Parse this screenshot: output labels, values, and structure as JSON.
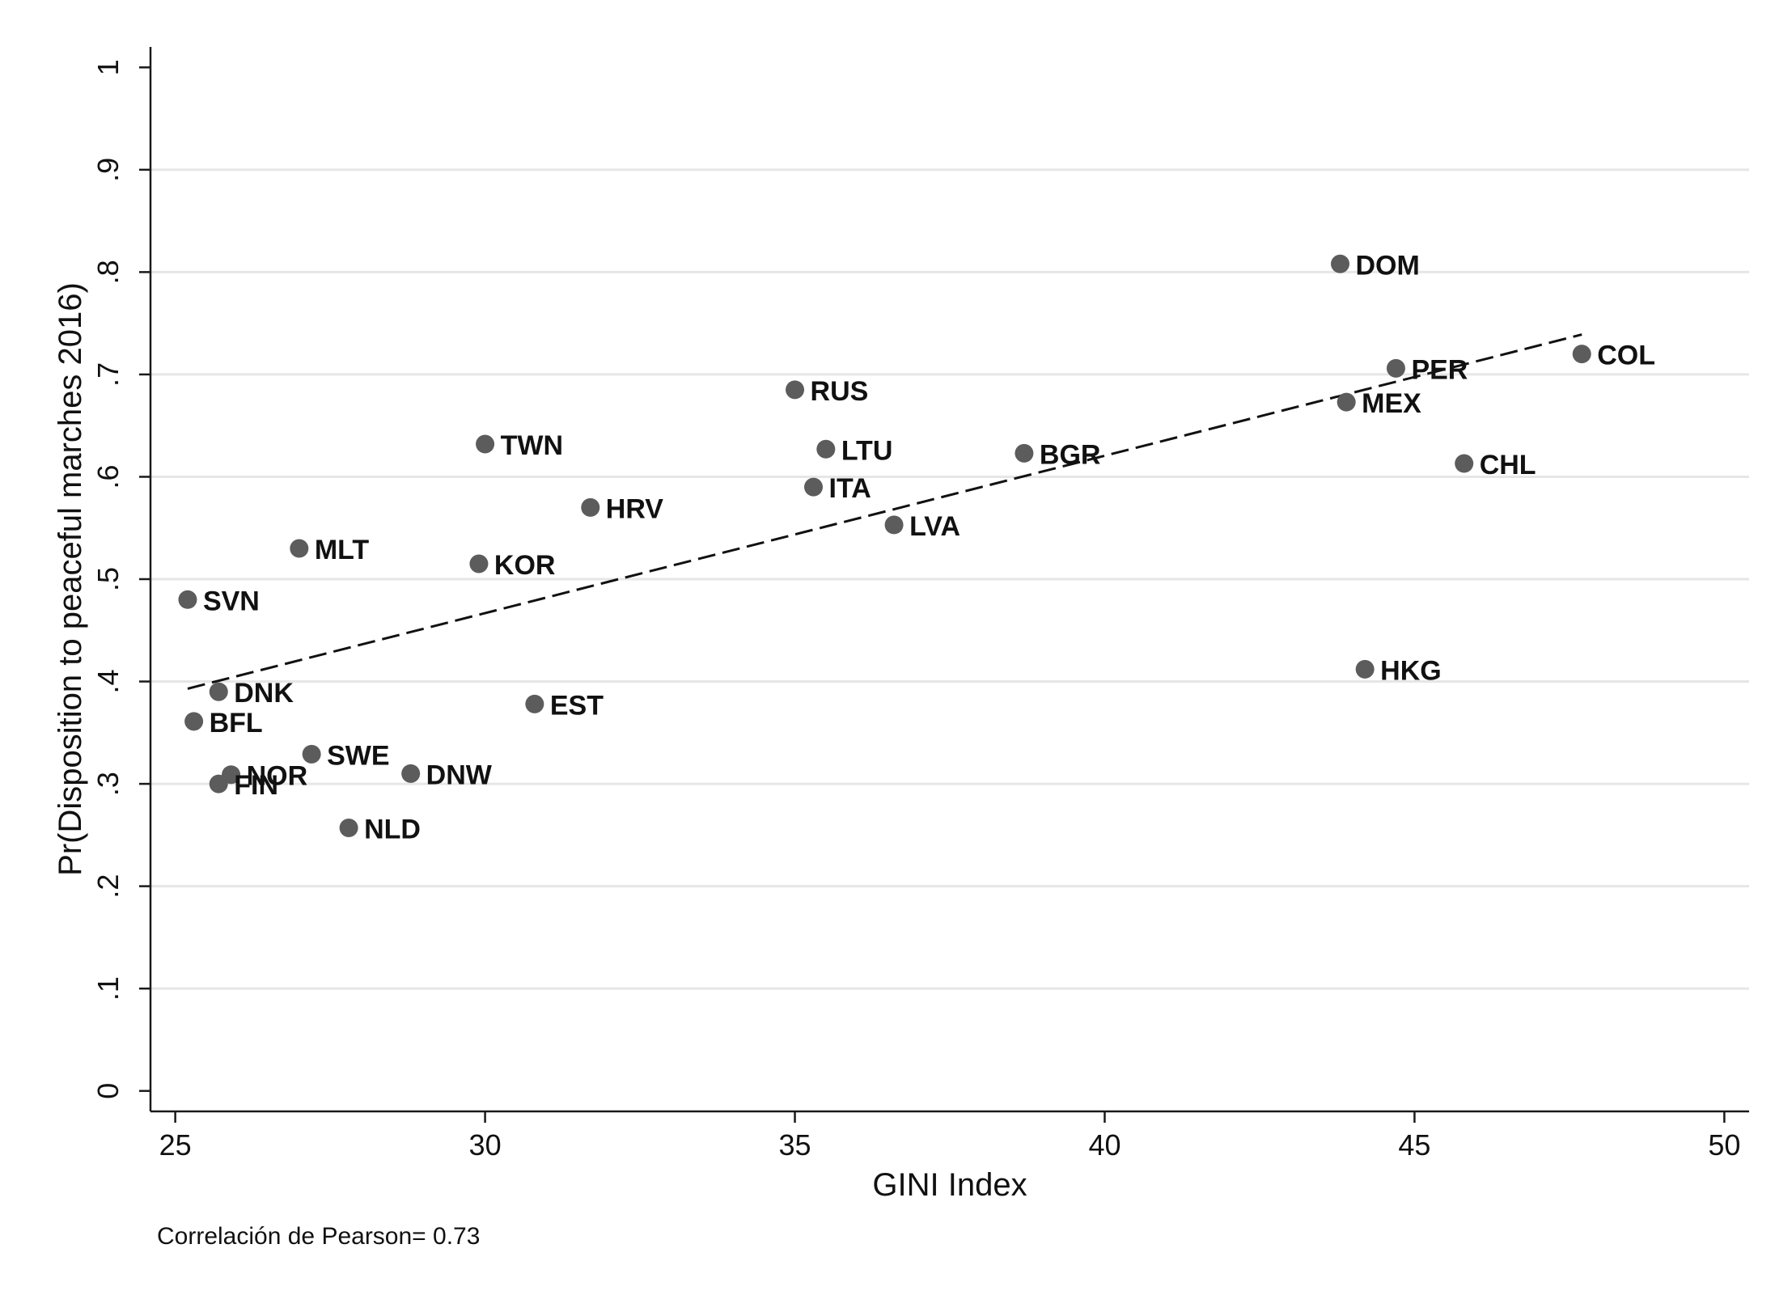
{
  "chart_data": {
    "type": "scatter",
    "xlabel": "GINI Index",
    "ylabel": "Pr(Disposition to peaceful marches 2016)",
    "xlim": [
      24.6,
      50.4
    ],
    "ylim": [
      -0.02,
      1.02
    ],
    "xticks": [
      25,
      30,
      35,
      40,
      45,
      50
    ],
    "xtick_labels": [
      "25",
      "30",
      "35",
      "40",
      "45",
      "50"
    ],
    "yticks": [
      0,
      0.1,
      0.2,
      0.3,
      0.4,
      0.5,
      0.6,
      0.7,
      0.8,
      0.9,
      1
    ],
    "ytick_labels": [
      "0",
      ".1",
      ".2",
      ".3",
      ".4",
      ".5",
      ".6",
      ".7",
      ".8",
      ".9",
      "1"
    ],
    "grid": "horizontal",
    "points": [
      {
        "label": "DOM",
        "x": 43.8,
        "y": 0.808
      },
      {
        "label": "COL",
        "x": 47.7,
        "y": 0.72
      },
      {
        "label": "PER",
        "x": 44.7,
        "y": 0.706
      },
      {
        "label": "RUS",
        "x": 35.0,
        "y": 0.685
      },
      {
        "label": "MEX",
        "x": 43.9,
        "y": 0.673
      },
      {
        "label": "TWN",
        "x": 30.0,
        "y": 0.632
      },
      {
        "label": "LTU",
        "x": 35.5,
        "y": 0.627
      },
      {
        "label": "BGR",
        "x": 38.7,
        "y": 0.623
      },
      {
        "label": "CHL",
        "x": 45.8,
        "y": 0.613
      },
      {
        "label": "ITA",
        "x": 35.3,
        "y": 0.59
      },
      {
        "label": "HRV",
        "x": 31.7,
        "y": 0.57
      },
      {
        "label": "LVA",
        "x": 36.6,
        "y": 0.553
      },
      {
        "label": "MLT",
        "x": 27.0,
        "y": 0.53
      },
      {
        "label": "KOR",
        "x": 29.9,
        "y": 0.515
      },
      {
        "label": "SVN",
        "x": 25.2,
        "y": 0.48
      },
      {
        "label": "HKG",
        "x": 44.2,
        "y": 0.412
      },
      {
        "label": "DNK",
        "x": 25.7,
        "y": 0.39
      },
      {
        "label": "EST",
        "x": 30.8,
        "y": 0.378
      },
      {
        "label": "BFL",
        "x": 25.3,
        "y": 0.361
      },
      {
        "label": "SWE",
        "x": 27.2,
        "y": 0.329
      },
      {
        "label": "DNW",
        "x": 28.8,
        "y": 0.31
      },
      {
        "label": "NOR",
        "x": 25.9,
        "y": 0.309
      },
      {
        "label": "FIN",
        "x": 25.7,
        "y": 0.3
      },
      {
        "label": "NLD",
        "x": 27.8,
        "y": 0.257
      }
    ],
    "fit_line": {
      "style": "dashed",
      "x": [
        25.2,
        47.7
      ],
      "y": [
        0.393,
        0.739
      ]
    },
    "annotation": "Correlación de Pearson= 0.73",
    "colors": {
      "marker": "#5c5c5c",
      "grid": "#e6e6e6",
      "axis": "#1a1a1a",
      "fit": "#111111"
    }
  }
}
